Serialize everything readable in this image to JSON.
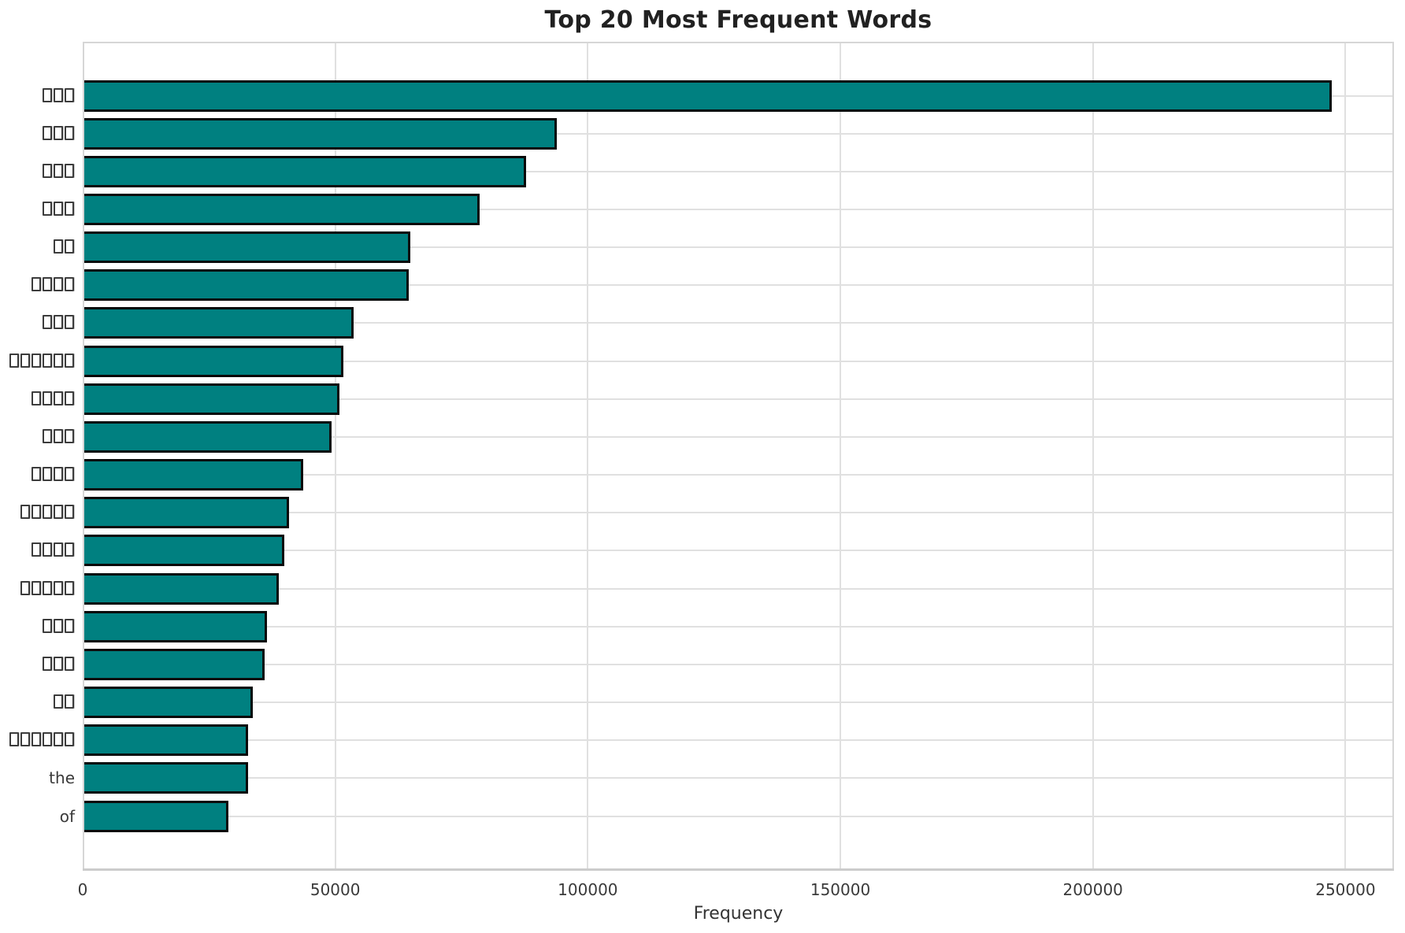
{
  "figure": {
    "background": "#ffffff"
  },
  "chart_data": {
    "type": "bar",
    "orientation": "horizontal",
    "title": "Top 20 Most Frequent Words",
    "xlabel": "Frequency",
    "ylabel": "",
    "xlim": [
      0,
      259600
    ],
    "x_ticks": [
      0,
      50000,
      100000,
      150000,
      200000,
      250000
    ],
    "x_tick_labels": [
      "0",
      "50000",
      "100000",
      "150000",
      "200000",
      "250000"
    ],
    "grid": true,
    "legend_position": "none",
    "bar_color": "#008080",
    "bar_edge_color": "#0a0a0a",
    "grid_color": "#e0e0e0",
    "categories": [
      "□□□",
      "□□□",
      "□□□",
      "□□□",
      "□□",
      "□□□□",
      "□□□",
      "□□□□□□",
      "□□□□",
      "□□□",
      "□□□□",
      "□□□□□",
      "□□□□",
      "□□□□□",
      "□□□",
      "□□□",
      "□□",
      "□□□□□□",
      "the",
      "of"
    ],
    "values": [
      247300,
      93900,
      87800,
      78600,
      64900,
      64600,
      53600,
      51600,
      50800,
      49300,
      43700,
      40800,
      39900,
      38900,
      36500,
      36000,
      33700,
      32800,
      32700,
      28800
    ]
  }
}
